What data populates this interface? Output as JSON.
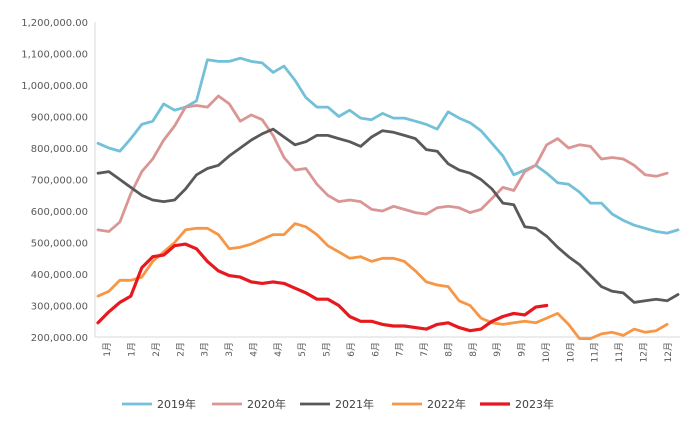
{
  "chart_data": {
    "type": "line",
    "ylim": [
      200000,
      1200000
    ],
    "y_ticks": [
      "200,000.00",
      "300,000.00",
      "400,000.00",
      "500,000.00",
      "600,000.00",
      "700,000.00",
      "800,000.00",
      "900,000.00",
      "1,000,000.00",
      "1,100,000.00",
      "1,200,000.00"
    ],
    "x_ticks": [
      "1月",
      "1月",
      "2月",
      "2月",
      "3月",
      "3月",
      "4月",
      "4月",
      "5月",
      "5月",
      "6月",
      "6月",
      "7月",
      "7月",
      "8月",
      "8月",
      "9月",
      "9月",
      "10月",
      "10月",
      "11月",
      "11月",
      "12月",
      "12月"
    ],
    "legend_position": "bottom",
    "grid": false,
    "series": [
      {
        "name": "2019年",
        "color": "#72C1D9",
        "values": [
          815000,
          800000,
          790000,
          830000,
          875000,
          885000,
          940000,
          920000,
          930000,
          950000,
          1080000,
          1075000,
          1075000,
          1085000,
          1075000,
          1070000,
          1040000,
          1060000,
          1015000,
          960000,
          930000,
          930000,
          900000,
          920000,
          895000,
          890000,
          910000,
          895000,
          895000,
          885000,
          875000,
          860000,
          915000,
          895000,
          880000,
          855000,
          815000,
          775000,
          715000,
          730000,
          745000,
          720000,
          690000,
          685000,
          660000,
          625000,
          625000,
          590000,
          570000,
          555000,
          545000,
          535000,
          530000,
          540000
        ]
      },
      {
        "name": "2020年",
        "color": "#D99694",
        "values": [
          540000,
          535000,
          565000,
          655000,
          725000,
          765000,
          825000,
          870000,
          930000,
          935000,
          930000,
          965000,
          940000,
          885000,
          905000,
          890000,
          840000,
          770000,
          730000,
          735000,
          685000,
          650000,
          630000,
          635000,
          630000,
          605000,
          600000,
          615000,
          605000,
          595000,
          590000,
          610000,
          615000,
          610000,
          595000,
          605000,
          640000,
          675000,
          665000,
          725000,
          745000,
          810000,
          830000,
          800000,
          810000,
          805000,
          765000,
          770000,
          765000,
          745000,
          715000,
          710000,
          720000
        ]
      },
      {
        "name": "2021年",
        "color": "#595959",
        "values": [
          720000,
          725000,
          700000,
          675000,
          650000,
          635000,
          630000,
          635000,
          670000,
          715000,
          735000,
          745000,
          775000,
          800000,
          825000,
          845000,
          860000,
          835000,
          810000,
          820000,
          840000,
          840000,
          830000,
          820000,
          805000,
          835000,
          855000,
          850000,
          840000,
          830000,
          795000,
          790000,
          750000,
          730000,
          720000,
          700000,
          670000,
          625000,
          620000,
          550000,
          545000,
          520000,
          485000,
          455000,
          430000,
          395000,
          360000,
          345000,
          340000,
          310000,
          315000,
          320000,
          315000,
          335000
        ]
      },
      {
        "name": "2022年",
        "color": "#F79646",
        "values": [
          330000,
          345000,
          380000,
          380000,
          390000,
          440000,
          470000,
          500000,
          540000,
          545000,
          545000,
          525000,
          480000,
          485000,
          495000,
          510000,
          525000,
          525000,
          560000,
          550000,
          525000,
          490000,
          470000,
          450000,
          455000,
          440000,
          450000,
          450000,
          440000,
          410000,
          375000,
          365000,
          360000,
          315000,
          300000,
          260000,
          245000,
          240000,
          245000,
          250000,
          245000,
          260000,
          275000,
          240000,
          195000,
          195000,
          210000,
          215000,
          205000,
          225000,
          215000,
          220000,
          240000
        ]
      },
      {
        "name": "2023年",
        "color": "#E8191E",
        "values": [
          245000,
          280000,
          310000,
          330000,
          420000,
          455000,
          460000,
          490000,
          495000,
          480000,
          440000,
          410000,
          395000,
          390000,
          375000,
          370000,
          375000,
          370000,
          355000,
          340000,
          320000,
          320000,
          300000,
          265000,
          250000,
          250000,
          240000,
          235000,
          235000,
          230000,
          225000,
          240000,
          245000,
          230000,
          220000,
          225000,
          250000,
          265000,
          275000,
          270000,
          295000,
          300000
        ]
      }
    ]
  }
}
